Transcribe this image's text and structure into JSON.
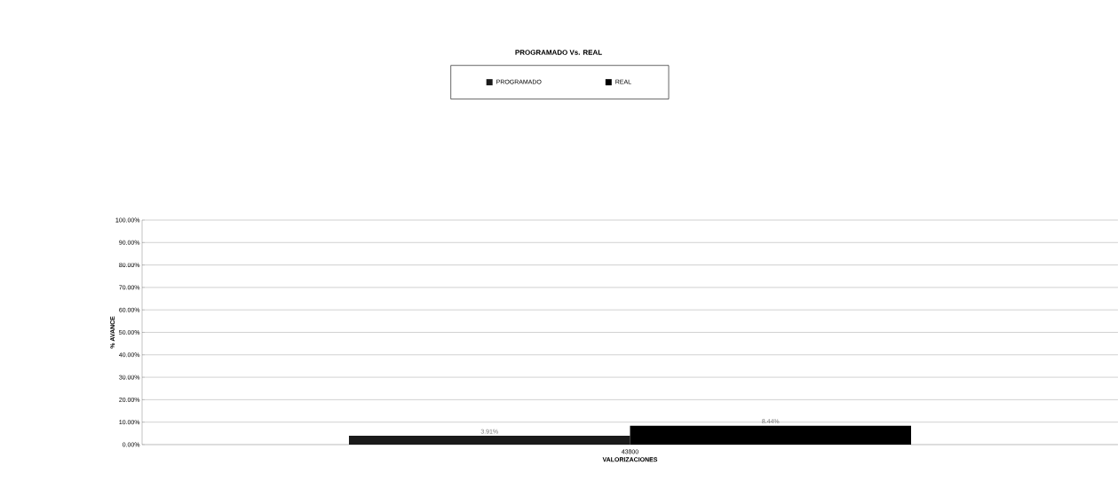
{
  "chart_data": {
    "type": "bar",
    "title": "PROGRAMADO Vs. REAL",
    "xlabel": "VALORIZACIONES",
    "ylabel": "% AVANCE",
    "categories": [
      "43800"
    ],
    "series": [
      {
        "name": "PROGRAMADO",
        "color": "#1a1a1a",
        "values": [
          3.91
        ],
        "value_labels": [
          "3.91%"
        ]
      },
      {
        "name": "REAL",
        "color": "#000000",
        "values": [
          8.44
        ],
        "value_labels": [
          "8.44%"
        ]
      }
    ],
    "ylim": [
      0,
      100
    ],
    "yticks": [
      {
        "value": 0,
        "label": "0.00%"
      },
      {
        "value": 10,
        "label": "10.00%"
      },
      {
        "value": 20,
        "label": "20.00%"
      },
      {
        "value": 30,
        "label": "30.00%"
      },
      {
        "value": 40,
        "label": "40.00%"
      },
      {
        "value": 50,
        "label": "50.00%"
      },
      {
        "value": 60,
        "label": "60.00%"
      },
      {
        "value": 70,
        "label": "70.00%"
      },
      {
        "value": 80,
        "label": "80.00%"
      },
      {
        "value": 90,
        "label": "90.00%"
      },
      {
        "value": 100,
        "label": "100.00%"
      }
    ],
    "grid": "y",
    "legend": "top"
  }
}
